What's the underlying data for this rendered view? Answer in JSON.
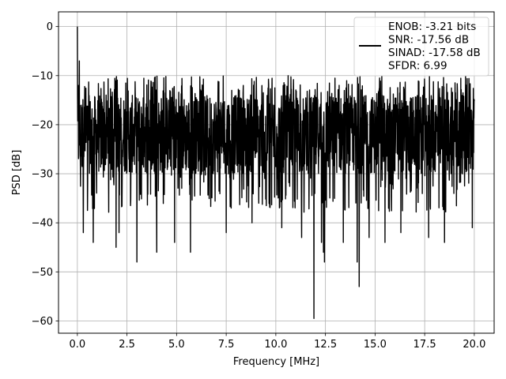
{
  "chart_data": {
    "type": "line",
    "title": "",
    "xlabel": "Frequency [MHz]",
    "ylabel": "PSD [dB]",
    "xlim": [
      -0.95,
      21.0
    ],
    "ylim": [
      -62.5,
      3.0
    ],
    "xticks": [
      0.0,
      2.5,
      5.0,
      7.5,
      10.0,
      12.5,
      15.0,
      17.5,
      20.0
    ],
    "xtick_labels": [
      "0.0",
      "2.5",
      "5.0",
      "7.5",
      "10.0",
      "12.5",
      "15.0",
      "17.5",
      "20.0"
    ],
    "yticks": [
      0,
      -10,
      -20,
      -30,
      -40,
      -50,
      -60
    ],
    "ytick_labels": [
      "0",
      "−10",
      "−20",
      "−30",
      "−40",
      "−50",
      "−60"
    ],
    "grid": true,
    "legend_position": "top-right",
    "line_color": "#000000",
    "series": [
      {
        "name": "ENOB: -3.21 bits\nSNR: -17.56 dB\nSINAD: -17.58 dB\nSFDR: 6.99",
        "noise_floor_mean_db": -22,
        "noise_upper_db": -10,
        "x_range": [
          0.0,
          20.0
        ],
        "peaks": [
          {
            "x": 0.0,
            "y": 0.0
          },
          {
            "x": 0.05,
            "y": -12
          },
          {
            "x": 0.1,
            "y": -7
          }
        ],
        "dips": [
          {
            "x": 0.3,
            "y": -42
          },
          {
            "x": 0.8,
            "y": -44
          },
          {
            "x": 1.95,
            "y": -45
          },
          {
            "x": 2.1,
            "y": -42
          },
          {
            "x": 3.0,
            "y": -48
          },
          {
            "x": 4.0,
            "y": -46
          },
          {
            "x": 4.9,
            "y": -44
          },
          {
            "x": 5.7,
            "y": -46
          },
          {
            "x": 7.5,
            "y": -42
          },
          {
            "x": 8.8,
            "y": -40
          },
          {
            "x": 10.3,
            "y": -41
          },
          {
            "x": 11.3,
            "y": -43
          },
          {
            "x": 11.92,
            "y": -59.5
          },
          {
            "x": 12.3,
            "y": -44
          },
          {
            "x": 12.4,
            "y": -46
          },
          {
            "x": 12.45,
            "y": -48
          },
          {
            "x": 13.4,
            "y": -44
          },
          {
            "x": 14.1,
            "y": -48
          },
          {
            "x": 14.2,
            "y": -53
          },
          {
            "x": 14.7,
            "y": -43
          },
          {
            "x": 15.5,
            "y": -44
          },
          {
            "x": 16.3,
            "y": -42
          },
          {
            "x": 17.7,
            "y": -43
          },
          {
            "x": 18.5,
            "y": -44
          },
          {
            "x": 19.9,
            "y": -41
          }
        ]
      }
    ]
  }
}
